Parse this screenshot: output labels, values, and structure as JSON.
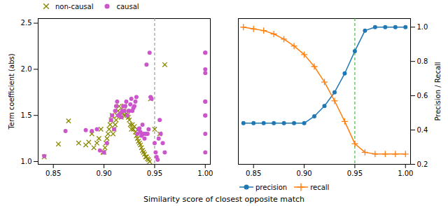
{
  "chart_data": [
    {
      "type": "scatter",
      "xlabel": "Similarity score of closest opposite match",
      "ylabel": "Term coefficient (abs)",
      "xlim": [
        0.835,
        1.005
      ],
      "xticks": [
        0.85,
        {
          "value": 0.9,
          "label": "0.90"
        },
        0.95,
        {
          "value": 1,
          "label": "1.00"
        }
      ],
      "ylim": [
        0.97,
        2.55
      ],
      "yticks": [
        {
          "value": 1,
          "label": "1.0"
        },
        1.5,
        {
          "value": 2,
          "label": "2.0"
        },
        2.5
      ],
      "legend": "upper left",
      "vline": {
        "x": 0.95,
        "color": "#888888",
        "line_style": "dashed"
      },
      "series": [
        {
          "name": "non-causal",
          "color": "#888800",
          "marker": "x",
          "x": [
            0.841,
            0.855,
            0.865,
            0.875,
            0.882,
            0.885,
            0.888,
            0.89,
            0.893,
            0.895,
            0.897,
            0.899,
            0.9,
            0.901,
            0.902,
            0.903,
            0.904,
            0.905,
            0.906,
            0.907,
            0.908,
            0.909,
            0.91,
            0.911,
            0.912,
            0.913,
            0.914,
            0.915,
            0.916,
            0.917,
            0.918,
            0.919,
            0.92,
            0.921,
            0.922,
            0.923,
            0.924,
            0.925,
            0.926,
            0.927,
            0.928,
            0.929,
            0.93,
            0.931,
            0.932,
            0.933,
            0.934,
            0.935,
            0.936,
            0.937,
            0.938,
            0.939,
            0.94,
            0.941,
            0.942,
            0.943,
            0.944,
            0.945,
            0.946,
            0.95,
            0.955,
            0.96
          ],
          "values": [
            1.05,
            1.19,
            1.44,
            1.2,
            1.18,
            1.21,
            1.3,
            1.15,
            1.2,
            1.25,
            1.35,
            1.1,
            1.1,
            1.15,
            1.2,
            1.25,
            1.3,
            1.35,
            1.4,
            1.45,
            1.5,
            1.3,
            1.35,
            1.4,
            1.45,
            1.5,
            1.55,
            1.6,
            1.5,
            1.48,
            1.52,
            1.55,
            1.6,
            1.5,
            1.52,
            1.5,
            1.48,
            1.45,
            1.4,
            1.35,
            1.4,
            1.35,
            1.38,
            1.32,
            1.28,
            1.25,
            1.22,
            1.2,
            1.18,
            1.15,
            1.12,
            1.1,
            1.08,
            1.05,
            1.05,
            1.03,
            1.02,
            1.0,
            1.68,
            1.35,
            1.3,
            2.05
          ]
        },
        {
          "name": "causal",
          "color": "#CC55CC",
          "marker": "o",
          "x": [
            0.841,
            0.862,
            0.882,
            0.888,
            0.893,
            0.896,
            0.9,
            0.903,
            0.907,
            0.908,
            0.91,
            0.911,
            0.912,
            0.913,
            0.914,
            0.915,
            0.916,
            0.917,
            0.918,
            0.919,
            0.92,
            0.921,
            0.922,
            0.923,
            0.924,
            0.925,
            0.926,
            0.927,
            0.928,
            0.929,
            0.93,
            0.931,
            0.932,
            0.933,
            0.934,
            0.935,
            0.936,
            0.937,
            0.938,
            0.939,
            0.94,
            0.941,
            0.942,
            0.943,
            0.944,
            0.945,
            0.946,
            0.947,
            0.95,
            0.951,
            0.952,
            0.953,
            0.954,
            0.955,
            0.956,
            0.958,
            0.96,
            1.0,
            1.0,
            1.0,
            1.0,
            1.0,
            1.0,
            1.0,
            1.0,
            1.0,
            1.0
          ],
          "values": [
            1.06,
            1.33,
            1.34,
            1.33,
            1.35,
            1.12,
            1.1,
            1.2,
            1.45,
            1.5,
            1.35,
            1.55,
            1.6,
            1.65,
            1.5,
            1.5,
            1.52,
            1.48,
            1.55,
            1.6,
            1.55,
            1.6,
            1.65,
            1.5,
            1.55,
            1.55,
            1.62,
            1.68,
            1.55,
            1.58,
            1.6,
            1.65,
            1.7,
            1.3,
            1.35,
            1.36,
            1.32,
            1.28,
            1.4,
            1.3,
            1.25,
            1.3,
            2.05,
            1.3,
            1.35,
            2.18,
            1.7,
            1.68,
            1.2,
            1.1,
            1.05,
            1.02,
            1.25,
            1.45,
            1.3,
            1.2,
            1.1,
            2.18,
            2.18,
            2.0,
            1.96,
            1.65,
            1.65,
            1.5,
            1.5,
            1.3,
            1.1
          ]
        }
      ]
    },
    {
      "type": "line",
      "y2label": "Precision / Recall",
      "xlim": [
        0.835,
        1.005
      ],
      "xticks": [
        0.85,
        {
          "value": 0.9,
          "label": "0.90"
        },
        0.95,
        {
          "value": 1,
          "label": "1.00"
        }
      ],
      "y2lim": [
        0.2,
        1.05
      ],
      "y2ticks": [
        0.2,
        0.4,
        0.6,
        0.8,
        {
          "value": 1,
          "label": "1.0"
        }
      ],
      "legend": "lower left",
      "vline": {
        "x": 0.95,
        "color": "#22AA22",
        "line_style": "dashed"
      },
      "series": [
        {
          "name": "precision",
          "color": "#1f77b4",
          "marker": "o",
          "axis": "y2",
          "x": [
            0.84,
            0.85,
            0.86,
            0.87,
            0.88,
            0.89,
            0.9,
            0.91,
            0.92,
            0.93,
            0.94,
            0.95,
            0.96,
            0.97,
            0.98,
            0.99,
            1.0
          ],
          "values": [
            0.44,
            0.44,
            0.44,
            0.44,
            0.44,
            0.44,
            0.44,
            0.48,
            0.54,
            0.62,
            0.73,
            0.86,
            0.98,
            1.0,
            1.0,
            1.0,
            1.0
          ]
        },
        {
          "name": "recall",
          "color": "#ff7f0e",
          "marker": "+",
          "axis": "y2",
          "x": [
            0.84,
            0.85,
            0.86,
            0.87,
            0.88,
            0.89,
            0.9,
            0.91,
            0.92,
            0.93,
            0.94,
            0.95,
            0.96,
            0.97,
            0.98,
            0.99,
            1.0
          ],
          "values": [
            1.0,
            0.99,
            0.98,
            0.96,
            0.93,
            0.89,
            0.84,
            0.77,
            0.68,
            0.57,
            0.45,
            0.32,
            0.27,
            0.26,
            0.26,
            0.26,
            0.26
          ]
        }
      ]
    }
  ]
}
